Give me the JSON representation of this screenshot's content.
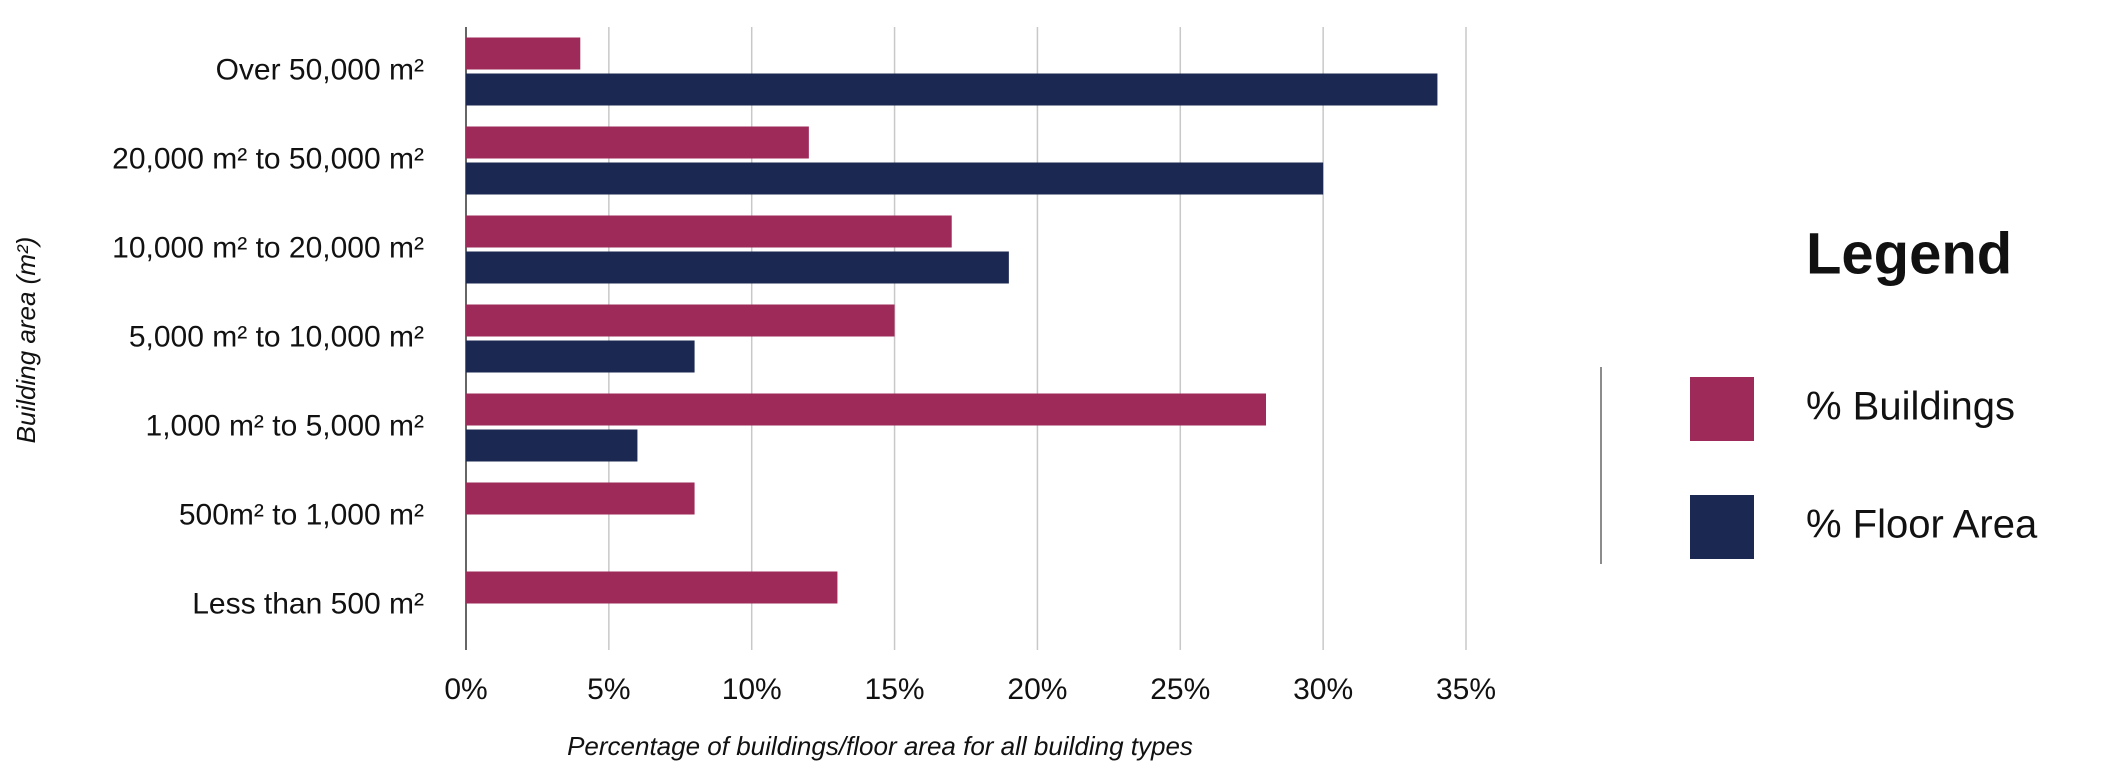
{
  "chart_data": {
    "type": "hbar",
    "xlabel": "Percentage of buildings/floor area for all building types",
    "ylabel": "Building area (m²)",
    "legend_title": "Legend",
    "categories": [
      "Over 50,000 m²",
      "20,000 m² to 50,000 m²",
      "10,000 m² to 20,000 m²",
      "5,000 m² to 10,000 m²",
      "1,000 m² to 5,000 m²",
      "500m² to 1,000 m²",
      "Less than 500 m²"
    ],
    "series": [
      {
        "name": "% Buildings",
        "color": "#9e2a5a",
        "values": [
          4,
          12,
          17,
          15,
          28,
          8,
          13
        ]
      },
      {
        "name": "% Floor Area",
        "color": "#1b2852",
        "values": [
          34,
          30,
          19,
          8,
          6,
          null,
          null
        ]
      }
    ],
    "xlim": [
      0,
      35
    ],
    "xticks": [
      {
        "value": 0,
        "label": "0%"
      },
      {
        "value": 5,
        "label": "5%"
      },
      {
        "value": 10,
        "label": "10%"
      },
      {
        "value": 15,
        "label": "15%"
      },
      {
        "value": 20,
        "label": "20%"
      },
      {
        "value": 25,
        "label": "25%"
      },
      {
        "value": 30,
        "label": "30%"
      },
      {
        "value": 35,
        "label": "35%"
      }
    ],
    "grid": true,
    "legend_position": "right"
  }
}
